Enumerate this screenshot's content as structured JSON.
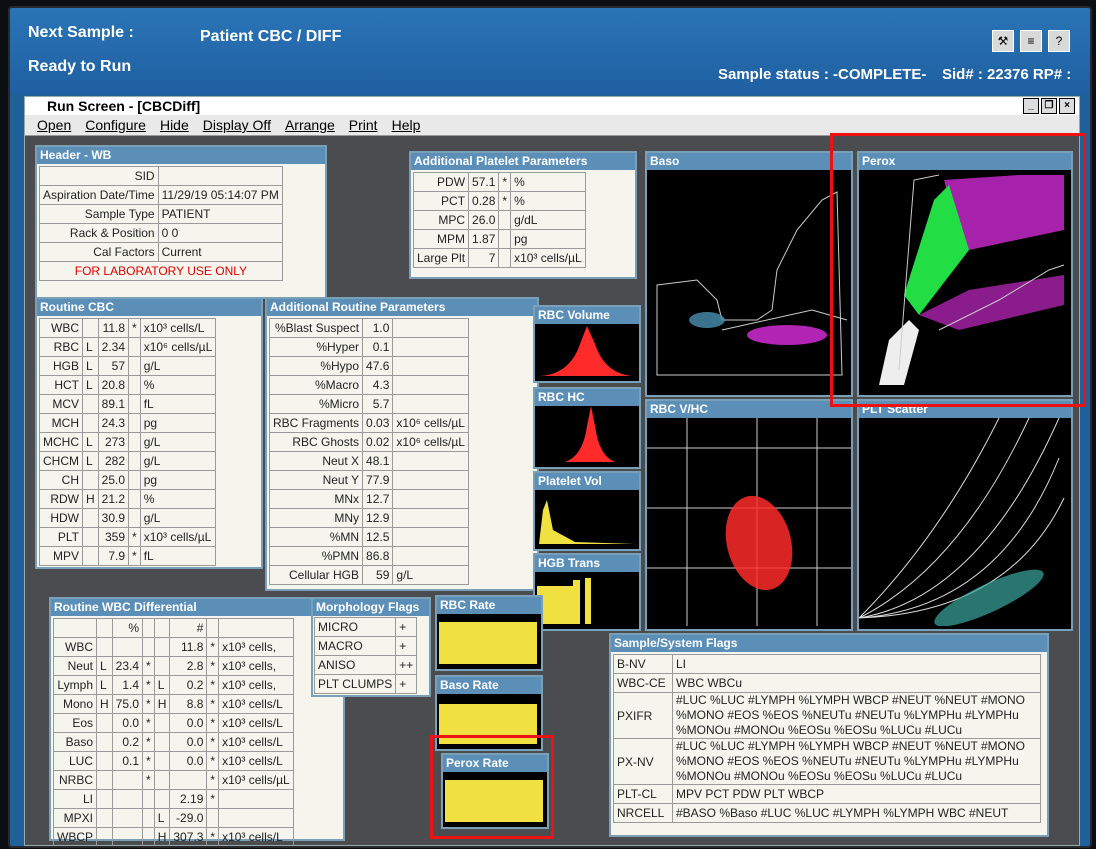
{
  "topbar": {
    "next_sample_label": "Next Sample :",
    "next_sample_value": "Patient CBC / DIFF",
    "status": "Ready to Run",
    "sample_status": "Sample status : -COMPLETE-",
    "sid": "Sid# : 22376 RP# :"
  },
  "window": {
    "title": "Run Screen - [CBCDiff]"
  },
  "menu": [
    "Open",
    "Configure",
    "Hide",
    "Display Off",
    "Arrange",
    "Print",
    "Help"
  ],
  "header_wb": {
    "title": "Header - WB",
    "rows": [
      [
        "SID",
        ""
      ],
      [
        "Aspiration Date/Time",
        "11/29/19 05:14:07 PM"
      ],
      [
        "Sample Type",
        "PATIENT"
      ],
      [
        "Rack & Position",
        "0 0"
      ],
      [
        "Cal Factors",
        "Current"
      ]
    ],
    "notice": "FOR LABORATORY USE ONLY"
  },
  "platelet_params": {
    "title": "Additional Platelet Parameters",
    "rows": [
      [
        "PDW",
        "57.1",
        "*",
        "%"
      ],
      [
        "PCT",
        "0.28",
        "*",
        "%"
      ],
      [
        "MPC",
        "26.0",
        "",
        "g/dL"
      ],
      [
        "MPM",
        "1.87",
        "",
        "pg"
      ],
      [
        "Large Plt",
        "7",
        "",
        "x10³ cells/µL"
      ]
    ]
  },
  "routine_cbc": {
    "title": "Routine CBC",
    "rows": [
      [
        "WBC",
        "",
        "11.8",
        "*",
        "x10³ cells/L"
      ],
      [
        "RBC",
        "L",
        "2.34",
        "",
        "x10⁶ cells/µL"
      ],
      [
        "HGB",
        "L",
        "57",
        "",
        "g/L"
      ],
      [
        "HCT",
        "L",
        "20.8",
        "",
        "%"
      ],
      [
        "MCV",
        "",
        "89.1",
        "",
        "fL"
      ],
      [
        "MCH",
        "",
        "24.3",
        "",
        "pg"
      ],
      [
        "MCHC",
        "L",
        "273",
        "",
        "g/L"
      ],
      [
        "CHCM",
        "L",
        "282",
        "",
        "g/L"
      ],
      [
        "CH",
        "",
        "25.0",
        "",
        "pg"
      ],
      [
        "RDW",
        "H",
        "21.2",
        "",
        "%"
      ],
      [
        "HDW",
        "",
        "30.9",
        "",
        "g/L"
      ],
      [
        "PLT",
        "",
        "359",
        "*",
        "x10³ cells/µL"
      ],
      [
        "MPV",
        "",
        "7.9",
        "*",
        "fL"
      ]
    ]
  },
  "add_routine": {
    "title": "Additional Routine Parameters",
    "rows": [
      [
        "%Blast Suspect",
        "1.0",
        ""
      ],
      [
        "%Hyper",
        "0.1",
        ""
      ],
      [
        "%Hypo",
        "47.6",
        ""
      ],
      [
        "%Macro",
        "4.3",
        ""
      ],
      [
        "%Micro",
        "5.7",
        ""
      ],
      [
        "RBC Fragments",
        "0.03",
        "x10⁶ cells/µL"
      ],
      [
        "RBC Ghosts",
        "0.02",
        "x10⁶ cells/µL"
      ],
      [
        "Neut X",
        "48.1",
        ""
      ],
      [
        "Neut Y",
        "77.9",
        ""
      ],
      [
        "MNx",
        "12.7",
        ""
      ],
      [
        "MNy",
        "12.9",
        ""
      ],
      [
        "%MN",
        "12.5",
        ""
      ],
      [
        "%PMN",
        "86.8",
        ""
      ],
      [
        "Cellular HGB",
        "59",
        "g/L"
      ]
    ]
  },
  "wbc_diff": {
    "title": "Routine WBC Differential",
    "head": [
      "",
      "",
      "%",
      "",
      "",
      "#",
      "",
      ""
    ],
    "rows": [
      [
        "WBC",
        "",
        "",
        "",
        "",
        "11.8",
        "*",
        "x10³ cells,"
      ],
      [
        "Neut",
        "L",
        "23.4",
        "*",
        "",
        "2.8",
        "*",
        "x10³ cells,"
      ],
      [
        "Lymph",
        "L",
        "1.4",
        "*",
        "L",
        "0.2",
        "*",
        "x10³ cells,"
      ],
      [
        "Mono",
        "H",
        "75.0",
        "*",
        "H",
        "8.8",
        "*",
        "x10³ cells/L"
      ],
      [
        "Eos",
        "",
        "0.0",
        "*",
        "",
        "0.0",
        "*",
        "x10³ cells/L"
      ],
      [
        "Baso",
        "",
        "0.2",
        "*",
        "",
        "0.0",
        "*",
        "x10³ cells/L"
      ],
      [
        "LUC",
        "",
        "0.1",
        "*",
        "",
        "0.0",
        "*",
        "x10³ cells/L"
      ],
      [
        "NRBC",
        "",
        "",
        "*",
        "",
        "",
        "*",
        "x10³ cells/µL"
      ],
      [
        "LI",
        "",
        "",
        "",
        "",
        "2.19",
        "*",
        ""
      ],
      [
        "MPXI",
        "",
        "",
        "",
        "L",
        "-29.0",
        "",
        ""
      ],
      [
        "WBCP",
        "",
        "",
        "",
        "H",
        "307.3",
        "*",
        "x10³ cells/L"
      ]
    ]
  },
  "morph": {
    "title": "Morphology Flags",
    "rows": [
      [
        "MICRO",
        "+"
      ],
      [
        "MACRO",
        "+"
      ],
      [
        "ANISO",
        "++"
      ],
      [
        "PLT CLUMPS",
        "+"
      ]
    ]
  },
  "flags": {
    "title": "Sample/System Flags",
    "rows": [
      [
        "B-NV",
        "LI"
      ],
      [
        "WBC-CE",
        "WBC WBCu"
      ],
      [
        "PXIFR",
        "#LUC %LUC #LYMPH %LYMPH WBCP #NEUT %NEUT #MONO %MONO #EOS %EOS %NEUTu #NEUTu %LYMPHu #LYMPHu %MONOu #MONOu %EOSu %EOSu %LUCu #LUCu"
      ],
      [
        "PX-NV",
        "#LUC %LUC #LYMPH %LYMPH WBCP #NEUT %NEUT #MONO %MONO #EOS %EOS %NEUTu #NEUTu %LYMPHu #LYMPHu %MONOu #MONOu %EOSu %EOSu %LUCu #LUCu"
      ],
      [
        "PLT-CL",
        "MPV PCT PDW PLT WBCP"
      ],
      [
        "NRCELL",
        "#BASO %Baso #LUC %LUC #LYMPH %LYMPH WBC #NEUT"
      ]
    ]
  },
  "plots": {
    "baso": "Baso",
    "perox": "Perox",
    "rbc_volume": "RBC Volume",
    "rbc_hc": "RBC HC",
    "plt_vol": "Platelet Vol",
    "hgb_trans": "HGB Trans",
    "rbc_vhc": "RBC V/HC",
    "plt_scatter": "PLT Scatter",
    "rbc_rate": "RBC Rate",
    "baso_rate": "Baso Rate",
    "perox_rate": "Perox Rate"
  },
  "colors": {
    "highlight": "#e11",
    "histogram_red": "#ff2a2a",
    "rate_yellow": "#f0e040",
    "perox_green": "#22dd44",
    "baso_magenta": "#c428c8"
  }
}
